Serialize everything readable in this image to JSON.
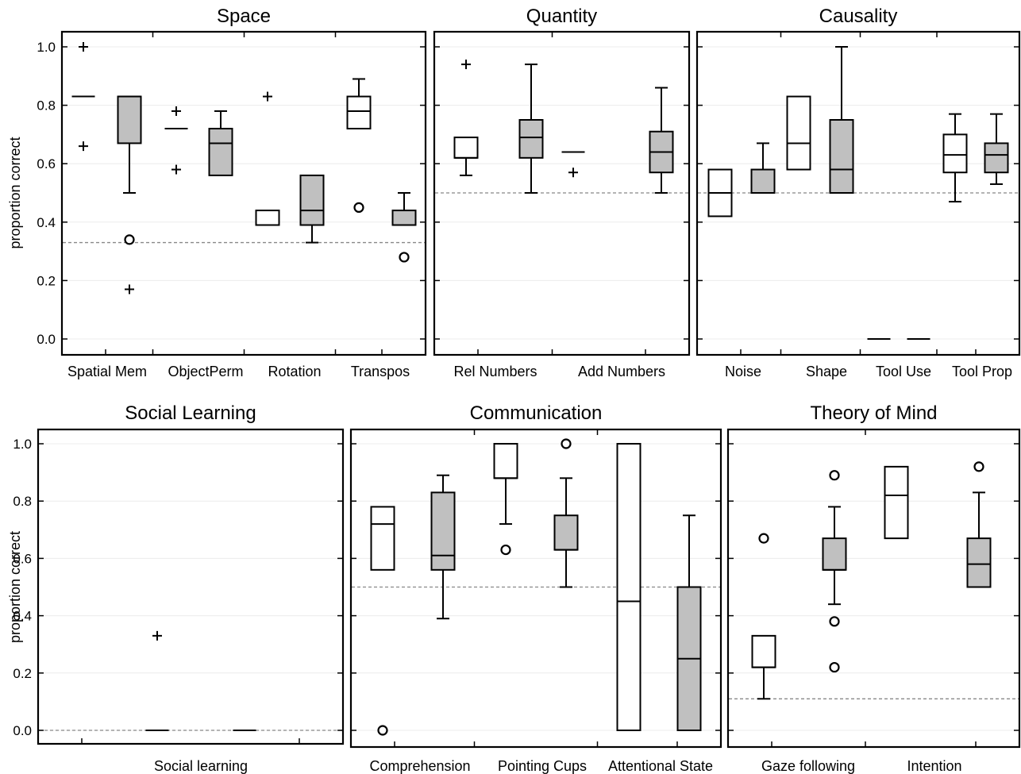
{
  "chart_data": [
    {
      "type": "box",
      "title": "Space",
      "ylabel": "proportion correct",
      "ylim": [
        -0.05,
        1.05
      ],
      "yticks": [
        "0.0",
        "0.2",
        "0.4",
        "0.6",
        "0.8",
        "1.0"
      ],
      "categories": [
        "Spatial Mem",
        "ObjectPerm",
        "Rotation",
        "Transpos"
      ],
      "chance_level": 0.33,
      "grid": true,
      "boxes": [
        {
          "category": "Spatial Mem",
          "fill": "white",
          "median": 0.83,
          "outliers_plus": [
            1.0,
            0.66
          ]
        },
        {
          "category": "Spatial Mem",
          "fill": "gray",
          "q1": 0.67,
          "median": 0.83,
          "q3": 0.83,
          "whisker_low": 0.5,
          "whisker_high": 0.83,
          "outliers_circle": [
            0.34
          ],
          "outliers_plus": [
            0.17
          ]
        },
        {
          "category": "ObjectPerm",
          "fill": "white",
          "median": 0.72,
          "outliers_plus": [
            0.78,
            0.58
          ]
        },
        {
          "category": "ObjectPerm",
          "fill": "gray",
          "q1": 0.56,
          "median": 0.67,
          "q3": 0.72,
          "whisker_low": 0.56,
          "whisker_high": 0.78
        },
        {
          "category": "Rotation",
          "fill": "white",
          "q1": 0.39,
          "median": 0.39,
          "q3": 0.44,
          "outliers_plus": [
            0.83
          ]
        },
        {
          "category": "Rotation",
          "fill": "gray",
          "q1": 0.39,
          "median": 0.44,
          "q3": 0.56,
          "whisker_low": 0.33,
          "whisker_high": 0.56
        },
        {
          "category": "Transpos",
          "fill": "white",
          "q1": 0.72,
          "median": 0.78,
          "q3": 0.83,
          "whisker_low": 0.72,
          "whisker_high": 0.89,
          "outliers_circle": [
            0.45
          ]
        },
        {
          "category": "Transpos",
          "fill": "gray",
          "q1": 0.39,
          "median": 0.39,
          "q3": 0.44,
          "whisker_low": 0.39,
          "whisker_high": 0.5,
          "outliers_circle": [
            0.28
          ]
        }
      ]
    },
    {
      "type": "box",
      "title": "Quantity",
      "ylim": [
        -0.05,
        1.05
      ],
      "categories": [
        "Rel Numbers",
        "Add Numbers"
      ],
      "chance_level": 0.5,
      "grid": true,
      "boxes": [
        {
          "category": "Rel Numbers",
          "fill": "white",
          "q1": 0.62,
          "median": 0.62,
          "q3": 0.69,
          "whisker_low": 0.56,
          "whisker_high": 0.69,
          "outliers_plus": [
            0.94
          ]
        },
        {
          "category": "Rel Numbers",
          "fill": "gray",
          "q1": 0.62,
          "median": 0.69,
          "q3": 0.75,
          "whisker_low": 0.5,
          "whisker_high": 0.94
        },
        {
          "category": "Add Numbers",
          "fill": "white",
          "median": 0.64,
          "outliers_plus": [
            0.57
          ]
        },
        {
          "category": "Add Numbers",
          "fill": "gray",
          "q1": 0.57,
          "median": 0.64,
          "q3": 0.71,
          "whisker_low": 0.5,
          "whisker_high": 0.86
        }
      ]
    },
    {
      "type": "box",
      "title": "Causality",
      "ylim": [
        -0.05,
        1.05
      ],
      "categories": [
        "Noise",
        "Shape",
        "Tool Use",
        "Tool Prop"
      ],
      "chance_level": 0.5,
      "grid": true,
      "boxes": [
        {
          "category": "Noise",
          "fill": "white",
          "q1": 0.42,
          "median": 0.5,
          "q3": 0.58
        },
        {
          "category": "Noise",
          "fill": "gray",
          "q1": 0.5,
          "median": 0.5,
          "q3": 0.58,
          "whisker_low": 0.5,
          "whisker_high": 0.67
        },
        {
          "category": "Shape",
          "fill": "white",
          "q1": 0.58,
          "median": 0.67,
          "q3": 0.83
        },
        {
          "category": "Shape",
          "fill": "gray",
          "q1": 0.5,
          "median": 0.58,
          "q3": 0.75,
          "whisker_low": 0.5,
          "whisker_high": 1.0
        },
        {
          "category": "Tool Use",
          "fill": "white",
          "median": 0.0
        },
        {
          "category": "Tool Use",
          "fill": "gray",
          "median": 0.0
        },
        {
          "category": "Tool Prop",
          "fill": "white",
          "q1": 0.57,
          "median": 0.63,
          "q3": 0.7,
          "whisker_low": 0.47,
          "whisker_high": 0.77
        },
        {
          "category": "Tool Prop",
          "fill": "gray",
          "q1": 0.57,
          "median": 0.63,
          "q3": 0.67,
          "whisker_low": 0.53,
          "whisker_high": 0.77
        }
      ]
    },
    {
      "type": "box",
      "title": "Social Learning",
      "ylabel": "proportion correct",
      "ylim": [
        -0.05,
        1.05
      ],
      "yticks": [
        "0.0",
        "0.2",
        "0.4",
        "0.6",
        "0.8",
        "1.0"
      ],
      "categories": [
        "Social learning"
      ],
      "chance_level": 0.0,
      "grid": true,
      "boxes": [
        {
          "category": "Social learning",
          "fill": "white",
          "median": 0.0,
          "outliers_plus": [
            0.33
          ]
        },
        {
          "category": "Social learning",
          "fill": "gray",
          "median": 0.0
        }
      ]
    },
    {
      "type": "box",
      "title": "Communication",
      "ylim": [
        -0.05,
        1.05
      ],
      "categories": [
        "Comprehension",
        "Pointing Cups",
        "Attentional State"
      ],
      "chance_level": 0.5,
      "grid": true,
      "boxes": [
        {
          "category": "Comprehension",
          "fill": "white",
          "q1": 0.56,
          "median": 0.72,
          "q3": 0.78,
          "outliers_circle": [
            0.0
          ]
        },
        {
          "category": "Comprehension",
          "fill": "gray",
          "q1": 0.56,
          "median": 0.61,
          "q3": 0.83,
          "whisker_low": 0.39,
          "whisker_high": 0.89
        },
        {
          "category": "Pointing Cups",
          "fill": "white",
          "q1": 0.88,
          "median": 0.88,
          "q3": 1.0,
          "whisker_low": 0.72,
          "whisker_high": 1.0,
          "outliers_circle": [
            0.63
          ]
        },
        {
          "category": "Pointing Cups",
          "fill": "gray",
          "q1": 0.63,
          "median": 0.63,
          "q3": 0.75,
          "whisker_low": 0.5,
          "whisker_high": 0.88,
          "outliers_circle": [
            1.0
          ]
        },
        {
          "category": "Attentional State",
          "fill": "white",
          "q1": 0.0,
          "median": 0.45,
          "q3": 1.0
        },
        {
          "category": "Attentional State",
          "fill": "gray",
          "q1": 0.0,
          "median": 0.25,
          "q3": 0.5,
          "whisker_low": 0.0,
          "whisker_high": 0.75
        }
      ]
    },
    {
      "type": "box",
      "title": "Theory of Mind",
      "ylim": [
        -0.05,
        1.05
      ],
      "categories": [
        "Gaze following",
        "Intention"
      ],
      "chance_level": 0.11,
      "grid": true,
      "boxes": [
        {
          "category": "Gaze following",
          "fill": "white",
          "q1": 0.22,
          "median": 0.22,
          "q3": 0.33,
          "whisker_low": 0.11,
          "whisker_high": 0.33,
          "outliers_circle": [
            0.67
          ]
        },
        {
          "category": "Gaze following",
          "fill": "gray",
          "q1": 0.56,
          "median": 0.56,
          "q3": 0.67,
          "whisker_low": 0.44,
          "whisker_high": 0.78,
          "outliers_circle": [
            0.89,
            0.38,
            0.22
          ]
        },
        {
          "category": "Intention",
          "fill": "white",
          "q1": 0.67,
          "median": 0.82,
          "q3": 0.92
        },
        {
          "category": "Intention",
          "fill": "gray",
          "q1": 0.5,
          "median": 0.58,
          "q3": 0.67,
          "whisker_low": 0.5,
          "whisker_high": 0.83,
          "outliers_circle": [
            0.92
          ]
        }
      ]
    }
  ],
  "colors": {
    "gray_box": "#c0c0c0",
    "white_box": "#ffffff",
    "chance_line": "#888888",
    "grid_line": "#ececec"
  }
}
